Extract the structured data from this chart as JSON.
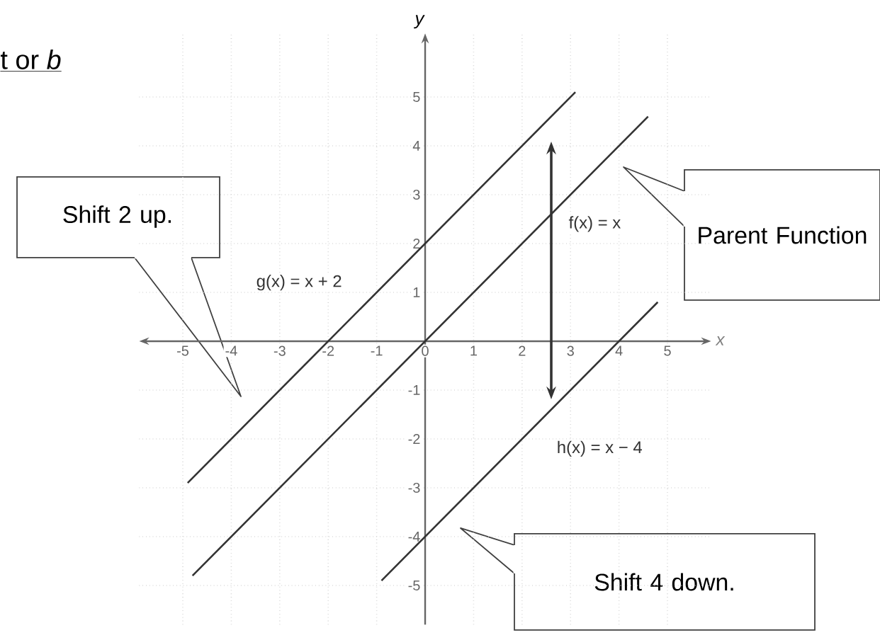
{
  "chart_data": {
    "type": "line",
    "title": "t or *b*",
    "xlabel": "x",
    "ylabel": "y",
    "xlim": [
      -5.9,
      5.9
    ],
    "ylim": [
      -5.8,
      6.3
    ],
    "xticks": [
      -5,
      -4,
      -3,
      -2,
      -1,
      0,
      1,
      2,
      3,
      4,
      5
    ],
    "yticks": [
      -5,
      -4,
      -3,
      -2,
      -1,
      1,
      2,
      3,
      4,
      5
    ],
    "grid": true,
    "series": [
      {
        "name": "g(x) = x + 2",
        "color": "#333333",
        "x": [
          -4.9,
          3.1
        ],
        "values": [
          -2.9,
          5.1
        ]
      },
      {
        "name": "f(x) = x",
        "color": "#333333",
        "x": [
          -4.8,
          4.6
        ],
        "values": [
          -4.8,
          4.6
        ]
      },
      {
        "name": "h(x) = x − 4",
        "color": "#333333",
        "x": [
          -0.9,
          4.8
        ],
        "values": [
          -4.9,
          0.8
        ]
      }
    ],
    "annotations": [
      "Shift 2 up.",
      "Parent Function",
      "Shift 4 down."
    ]
  }
}
